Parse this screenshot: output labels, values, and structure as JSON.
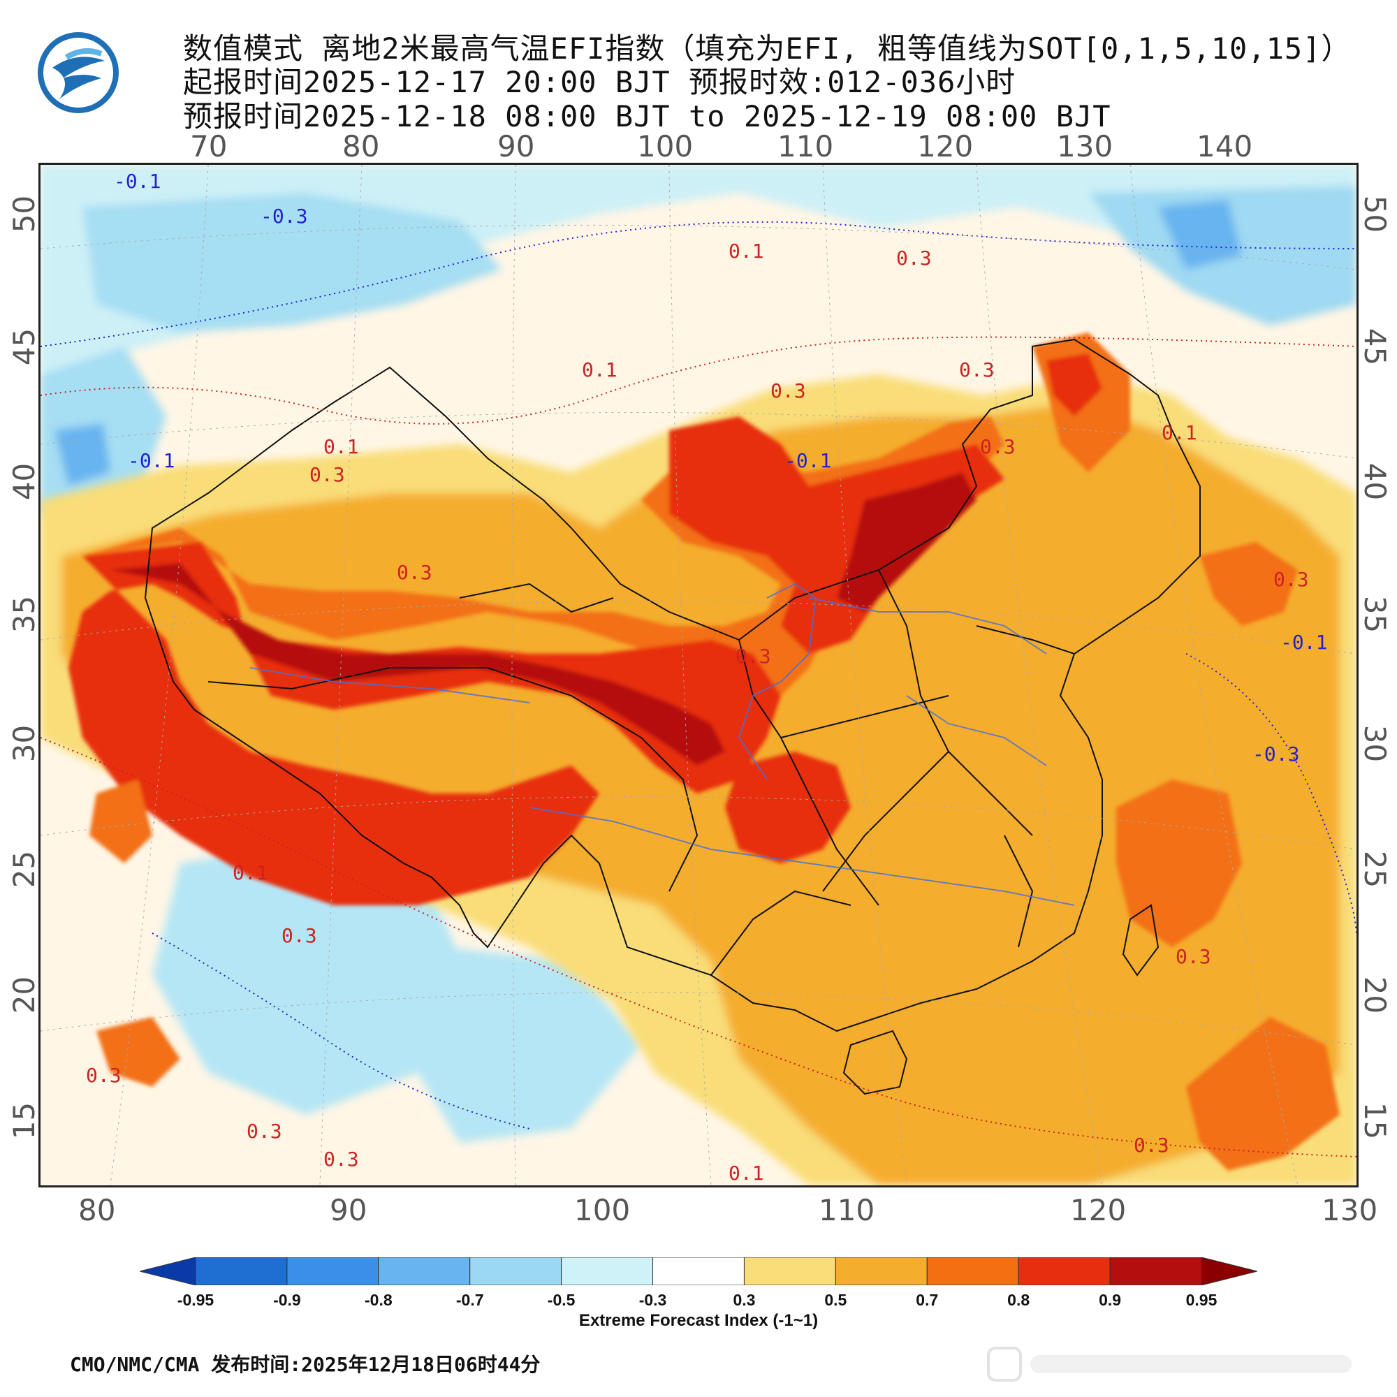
{
  "header": {
    "title_line1": "数值模式 离地2米最高气温EFI指数（填充为EFI, 粗等值线为SOT[0,1,5,10,15]）",
    "title_line2": "起报时间2025-12-17 20:00 BJT 预报时效:012-036小时",
    "title_line3": "预报时间2025-12-18 08:00 BJT to 2025-12-19 08:00 BJT"
  },
  "logo": {
    "icon": "cma-logo"
  },
  "map": {
    "top_lon_labels": [
      "70",
      "80",
      "90",
      "100",
      "110",
      "120",
      "130",
      "140"
    ],
    "bottom_lon_labels": [
      "80",
      "90",
      "100",
      "110",
      "120",
      "130"
    ],
    "left_lat_labels": [
      "50",
      "45",
      "40",
      "35",
      "30",
      "25",
      "20",
      "15"
    ],
    "right_lat_labels": [
      "50",
      "45",
      "40",
      "35",
      "30",
      "25",
      "20",
      "15"
    ],
    "contour_labels": [
      {
        "text": "-0.1",
        "color": "#2222cc"
      },
      {
        "text": "-0.3",
        "color": "#2222cc"
      },
      {
        "text": "0.1",
        "color": "#cc2222"
      },
      {
        "text": "0.3",
        "color": "#cc2222"
      },
      {
        "text": "-0.1",
        "color": "#2222cc"
      },
      {
        "text": "0.1",
        "color": "#cc2222"
      },
      {
        "text": "0.3",
        "color": "#cc2222"
      },
      {
        "text": "0.1",
        "color": "#cc2222"
      },
      {
        "text": "0.3",
        "color": "#cc2222"
      },
      {
        "text": "-0.1",
        "color": "#2222cc"
      },
      {
        "text": "0.3",
        "color": "#cc2222"
      },
      {
        "text": "0.3",
        "color": "#cc2222"
      },
      {
        "text": "0.3",
        "color": "#cc2222"
      },
      {
        "text": "0.1",
        "color": "#cc2222"
      },
      {
        "text": "0.3",
        "color": "#cc2222"
      },
      {
        "text": "0.3",
        "color": "#cc2222"
      },
      {
        "text": "0.3",
        "color": "#cc2222"
      },
      {
        "text": "0.3",
        "color": "#cc2222"
      },
      {
        "text": "0.1",
        "color": "#cc2222"
      },
      {
        "text": "0.3",
        "color": "#cc2222"
      },
      {
        "text": "-0.1",
        "color": "#2222cc"
      },
      {
        "text": "-0.3",
        "color": "#2222cc"
      },
      {
        "text": "0.1",
        "color": "#cc2222"
      },
      {
        "text": "0.3",
        "color": "#cc2222"
      },
      {
        "text": "0.3",
        "color": "#cc2222"
      },
      {
        "text": "0.3",
        "color": "#cc2222"
      },
      {
        "text": "0.3",
        "color": "#cc2222"
      }
    ]
  },
  "colorbar": {
    "ticks": [
      "-0.95",
      "-0.9",
      "-0.8",
      "-0.7",
      "-0.5",
      "-0.3",
      "0.3",
      "0.5",
      "0.7",
      "0.8",
      "0.9",
      "0.95"
    ],
    "colors": [
      "#0a3aa8",
      "#1f6fd2",
      "#3a8fe6",
      "#68b4f0",
      "#9ad8f4",
      "#cff1f8",
      "#ffffff",
      "#f9dd78",
      "#f5ad2e",
      "#f36f12",
      "#e72f10",
      "#b50e0e",
      "#8a0000"
    ],
    "title": "Extreme Forecast Index (-1~1)"
  },
  "footer": {
    "text": "CMO/NMC/CMA  发布时间:2025年12月18日06时44分"
  }
}
